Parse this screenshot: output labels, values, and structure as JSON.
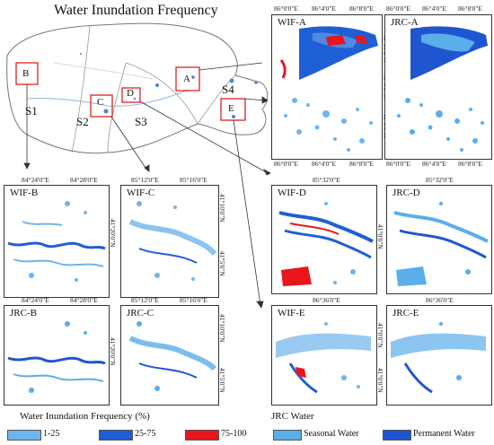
{
  "title": "Water Inundation Frequency",
  "colors": {
    "wif_1_25": "#6fb4ec",
    "wif_25_75": "#1f5fd6",
    "wif_75_100": "#e8161c",
    "seasonal": "#5aaeea",
    "permanent": "#1f56d0",
    "roi_box": "#e0201f"
  },
  "overview": {
    "regions": [
      "S1",
      "S2",
      "S3",
      "S4"
    ],
    "roi_boxes": [
      "A",
      "B",
      "C",
      "D",
      "E"
    ]
  },
  "panels": {
    "wif_a": {
      "label": "WIF-A",
      "x_ticks": [
        "86°0'0\"E",
        "86°4'0\"E",
        "86°8'0\"E"
      ],
      "y_ticks": [
        "41°10'0\"N",
        "41°5'0\"N",
        "41°0'0\"N"
      ]
    },
    "jrc_a": {
      "label": "JRC-A",
      "x_ticks": [
        "86°0'0\"E",
        "86°4'0\"E",
        "86°8'0\"E"
      ]
    },
    "wif_b": {
      "label": "WIF-B",
      "x_ticks": [
        "84°24'0\"E",
        "84°28'0\"E"
      ],
      "y_ticks": [
        "41°20'0\"N"
      ]
    },
    "wif_c": {
      "label": "WIF-C",
      "x_ticks": [
        "85°12'0\"E",
        "85°16'0\"E"
      ],
      "y_ticks": [
        "41°10'0\"N",
        "41°5'0\"N"
      ]
    },
    "jrc_b": {
      "label": "JRC-B",
      "x_ticks": [
        "84°24'0\"E",
        "84°28'0\"E"
      ],
      "y_ticks": [
        "41°20'0\"N"
      ]
    },
    "jrc_c": {
      "label": "JRC-C",
      "x_ticks": [
        "85°12'0\"E",
        "85°16'0\"E"
      ],
      "y_ticks": [
        "41°10'0\"N",
        "41°5'0\"N"
      ]
    },
    "wif_d": {
      "label": "WIF-D",
      "x_ticks": [
        "85°32'0\"E"
      ],
      "y_ticks": [
        "41°0'0\"N"
      ]
    },
    "jrc_d": {
      "label": "JRC-D",
      "x_ticks": [
        "85°32'0\"E"
      ]
    },
    "wif_e": {
      "label": "WIF-E",
      "x_ticks": [
        "86°36'0\"E"
      ],
      "y_ticks": [
        "41°0'0\"N",
        "41°0'0\"N"
      ]
    },
    "jrc_e": {
      "label": "JRC-E",
      "x_ticks": [
        "86°36'0\"E"
      ]
    }
  },
  "legend_wif": {
    "title": "Water Inundation Frequency (%)",
    "items": [
      "1-25",
      "25-75",
      "75-100"
    ]
  },
  "legend_jrc": {
    "title": "JRC Water",
    "items": [
      "Seasonal Water",
      "Permanent Water"
    ]
  }
}
